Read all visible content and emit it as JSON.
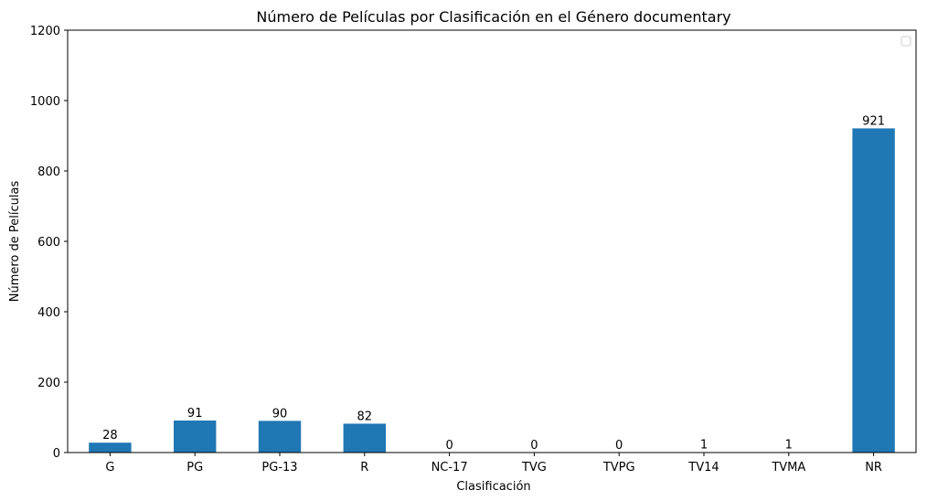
{
  "chart_data": {
    "type": "bar",
    "title": "Número de Películas por Clasificación en el Género documentary",
    "xlabel": "Clasificación",
    "ylabel": "Número de Películas",
    "categories": [
      "G",
      "PG",
      "PG-13",
      "R",
      "NC-17",
      "TVG",
      "TVPG",
      "TV14",
      "TVMA",
      "NR"
    ],
    "values": [
      28,
      91,
      90,
      82,
      0,
      0,
      0,
      1,
      1,
      921
    ],
    "data_labels": [
      "28",
      "91",
      "90",
      "82",
      "0",
      "0",
      "0",
      "1",
      "1",
      "921"
    ],
    "ylim": [
      0,
      1200
    ],
    "yticks": [
      0,
      200,
      400,
      600,
      800,
      1000,
      1200
    ],
    "ytick_labels": [
      "0",
      "200",
      "400",
      "600",
      "800",
      "1000",
      "1200"
    ],
    "bar_color": "#1f77b4",
    "grid": false,
    "legend": "top-right (empty)"
  }
}
